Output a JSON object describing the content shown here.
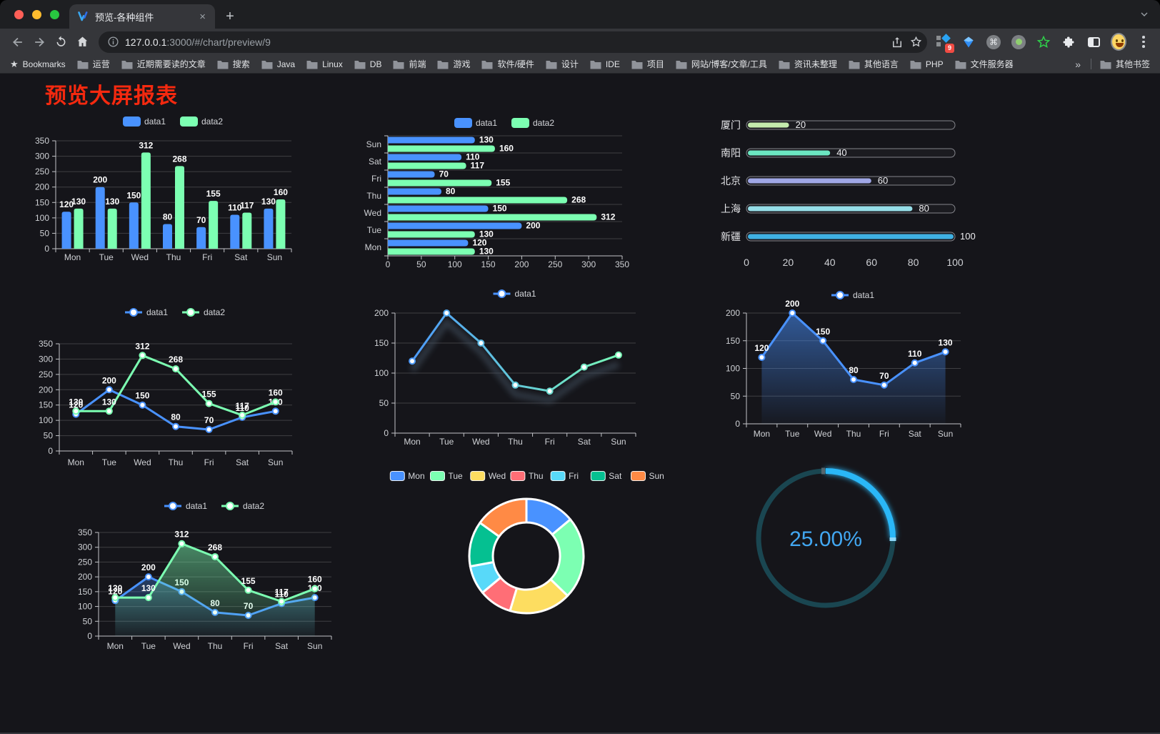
{
  "browser": {
    "window_controls": [
      "close",
      "minimize",
      "zoom"
    ],
    "tab_title": "预览-各种组件",
    "close_tab_label": "×",
    "new_tab_label": "+",
    "url_host": "127.0.0.1",
    "url_rest": ":3000/#/chart/preview/9",
    "bookmarks_star_label": "Bookmarks",
    "bookmark_folders": [
      "运营",
      "近期需要读的文章",
      "搜索",
      "Java",
      "Linux",
      "DB",
      "前端",
      "游戏",
      "软件/硬件",
      "设计",
      "IDE",
      "项目",
      "网站/博客/文章/工具",
      "资讯未整理",
      "其他语言",
      "PHP",
      "文件服务器"
    ],
    "overflow_chevron": "»",
    "other_bookmarks_label": "其他书签",
    "extension_badge_count": "9",
    "extension_icons": [
      "proxy-grid-diamond",
      "blue-gem",
      "command-circle",
      "green-dot-circle",
      "green-star-outline",
      "puzzle",
      "sidebar",
      "avatar-emoji",
      "menu-dots"
    ]
  },
  "page": {
    "title": "预览大屏报表",
    "title_color": "#f5290f",
    "background": "#15151a"
  },
  "chart_data": [
    {
      "id": "grouped-bar-vertical",
      "type": "bar",
      "categories": [
        "Mon",
        "Tue",
        "Wed",
        "Thu",
        "Fri",
        "Sat",
        "Sun"
      ],
      "series": [
        {
          "name": "data1",
          "color": "#4992ff",
          "values": [
            120,
            200,
            150,
            80,
            70,
            110,
            130
          ]
        },
        {
          "name": "data2",
          "color": "#7cffb2",
          "values": [
            130,
            130,
            312,
            268,
            155,
            117,
            160
          ]
        }
      ],
      "ylim": [
        0,
        350
      ],
      "ystep": 50,
      "legend_position": "top",
      "grid": true,
      "value_labels": true
    },
    {
      "id": "grouped-bar-horizontal",
      "type": "bar",
      "orientation": "horizontal",
      "categories": [
        "Mon",
        "Tue",
        "Wed",
        "Thu",
        "Fri",
        "Sat",
        "Sun"
      ],
      "categories_axis_order": "bottom-to-top",
      "series": [
        {
          "name": "data1",
          "color": "#4992ff",
          "values": [
            120,
            200,
            150,
            80,
            70,
            110,
            130
          ]
        },
        {
          "name": "data2",
          "color": "#7cffb2",
          "values": [
            130,
            130,
            312,
            268,
            155,
            117,
            160
          ]
        }
      ],
      "xlim": [
        0,
        350
      ],
      "xstep": 50,
      "legend_position": "top",
      "value_labels": true
    },
    {
      "id": "capsule-progress-bars",
      "type": "bar",
      "subtype": "capsule-progress",
      "items": [
        {
          "label": "厦门",
          "value": 20,
          "color": "#c4ebad"
        },
        {
          "label": "南阳",
          "value": 40,
          "color": "#6be6c1"
        },
        {
          "label": "北京",
          "value": 60,
          "color": "#a0a7e6"
        },
        {
          "label": "上海",
          "value": 80,
          "color": "#96dee8"
        },
        {
          "label": "新疆",
          "value": 100,
          "color": "#3fb1e3"
        }
      ],
      "xlim": [
        0,
        100
      ],
      "xticks": [
        0,
        20,
        40,
        60,
        80,
        100
      ]
    },
    {
      "id": "line-two-series",
      "type": "line",
      "categories": [
        "Mon",
        "Tue",
        "Wed",
        "Thu",
        "Fri",
        "Sat",
        "Sun"
      ],
      "series": [
        {
          "name": "data1",
          "color": "#4992ff",
          "values": [
            120,
            200,
            150,
            80,
            70,
            110,
            130
          ]
        },
        {
          "name": "data2",
          "color": "#7cffb2",
          "values": [
            130,
            130,
            312,
            268,
            155,
            117,
            160
          ]
        }
      ],
      "ylim": [
        0,
        350
      ],
      "ystep": 50,
      "legend_position": "top",
      "value_labels": true
    },
    {
      "id": "line-gradient-single",
      "type": "line",
      "categories": [
        "Mon",
        "Tue",
        "Wed",
        "Thu",
        "Fri",
        "Sat",
        "Sun"
      ],
      "series": [
        {
          "name": "data1",
          "gradient": [
            "#4992ff",
            "#7cffb2"
          ],
          "values": [
            120,
            200,
            150,
            80,
            70,
            110,
            130
          ],
          "shadow": true
        }
      ],
      "ylim": [
        0,
        200
      ],
      "ystep": 50,
      "legend_position": "top",
      "value_labels": false
    },
    {
      "id": "area-single",
      "type": "area",
      "categories": [
        "Mon",
        "Tue",
        "Wed",
        "Thu",
        "Fri",
        "Sat",
        "Sun"
      ],
      "series": [
        {
          "name": "data1",
          "color": "#4992ff",
          "area": true,
          "values": [
            120,
            200,
            150,
            80,
            70,
            110,
            130
          ]
        }
      ],
      "ylim": [
        0,
        200
      ],
      "ystep": 50,
      "legend_position": "top",
      "value_labels": true
    },
    {
      "id": "area-two-series",
      "type": "area",
      "categories": [
        "Mon",
        "Tue",
        "Wed",
        "Thu",
        "Fri",
        "Sat",
        "Sun"
      ],
      "series": [
        {
          "name": "data1",
          "color": "#4992ff",
          "area": true,
          "values": [
            120,
            200,
            150,
            80,
            70,
            110,
            130
          ]
        },
        {
          "name": "data2",
          "color": "#7cffb2",
          "area": true,
          "values": [
            130,
            130,
            312,
            268,
            155,
            117,
            160
          ]
        }
      ],
      "ylim": [
        0,
        350
      ],
      "ystep": 50,
      "legend_position": "top",
      "value_labels": true
    },
    {
      "id": "donut",
      "type": "pie",
      "inner_radius_ratio": 0.59,
      "legend_position": "top",
      "items": [
        {
          "label": "Mon",
          "value": 120,
          "color": "#4992ff"
        },
        {
          "label": "Tue",
          "value": 200,
          "color": "#7cffb2"
        },
        {
          "label": "Wed",
          "value": 150,
          "color": "#fddd60"
        },
        {
          "label": "Thu",
          "value": 80,
          "color": "#ff6e76"
        },
        {
          "label": "Fri",
          "value": 70,
          "color": "#58d9f9"
        },
        {
          "label": "Sat",
          "value": 110,
          "color": "#05c091"
        },
        {
          "label": "Sun",
          "value": 130,
          "color": "#ff8a45"
        }
      ],
      "border_color": "#ffffff"
    },
    {
      "id": "ring-gauge",
      "type": "gauge",
      "value_percent": 25,
      "label": "25.00%",
      "arc_color": "#29b7f7",
      "track_color": "#1a4651",
      "text_color": "#42a7f1"
    }
  ]
}
